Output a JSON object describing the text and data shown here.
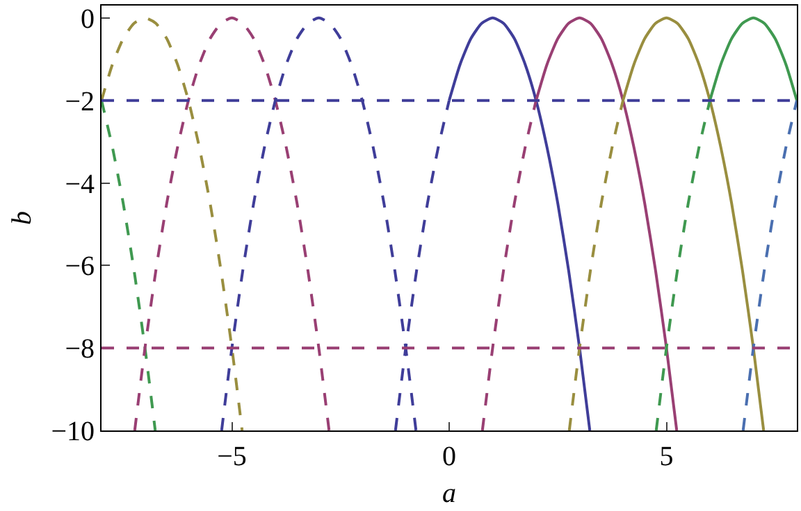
{
  "chart_data": {
    "type": "line",
    "xlabel": "a",
    "ylabel": "b",
    "xlim": [
      -8,
      8
    ],
    "ylim": [
      -10,
      0.3
    ],
    "xticks": [
      -5,
      0,
      5
    ],
    "yticks": [
      -10,
      -8,
      -6,
      -4,
      -2,
      0
    ],
    "marker": "none",
    "series": [
      {
        "color": "#3f9950",
        "line_style": "dashed",
        "x": [
          -8,
          -7.75,
          -7.5,
          -7.25,
          -7,
          -6.764
        ],
        "values": [
          -2,
          -3.13,
          -4.5,
          -6.13,
          -8,
          -10
        ]
      },
      {
        "color": "#998e3f",
        "line_style": "dashed",
        "x": [
          -8,
          -7.75,
          -7.5,
          -7.25,
          -7,
          -6.75,
          -6.5,
          -6.25,
          -6,
          -5.75,
          -5.5,
          -5.25,
          -5,
          -4.764
        ],
        "values": [
          -2,
          -1.13,
          -0.5,
          -0.13,
          0,
          -0.13,
          -0.5,
          -1.13,
          -2,
          -3.13,
          -4.5,
          -6.13,
          -8,
          -10
        ]
      },
      {
        "color": "#993f73",
        "line_style": "dashed",
        "x": [
          -7.236,
          -7,
          -6.75,
          -6.5,
          -6.25,
          -6,
          -5.75,
          -5.5,
          -5.25,
          -5,
          -4.75,
          -4.5,
          -4.25,
          -4,
          -3.75,
          -3.5,
          -3.25,
          -3,
          -2.764
        ],
        "values": [
          -10,
          -8,
          -6.13,
          -4.5,
          -3.13,
          -2,
          -1.13,
          -0.5,
          -0.13,
          0,
          -0.13,
          -0.5,
          -1.13,
          -2,
          -3.13,
          -4.5,
          -6.13,
          -8,
          -10
        ]
      },
      {
        "color": "#3f3d99",
        "line_style": "dashed",
        "x": [
          -5.236,
          -5,
          -4.75,
          -4.5,
          -4.25,
          -4,
          -3.75,
          -3.5,
          -3.25,
          -3,
          -2.75,
          -2.5,
          -2.25,
          -2,
          -1.75,
          -1.5,
          -1.25,
          -1,
          -0.764
        ],
        "values": [
          -10,
          -8,
          -6.13,
          -4.5,
          -3.13,
          -2,
          -1.13,
          -0.5,
          -0.13,
          0,
          -0.13,
          -0.5,
          -1.13,
          -2,
          -3.13,
          -4.5,
          -6.13,
          -8,
          -10
        ]
      },
      {
        "color": "#3f3d99",
        "line_style": "dashed",
        "x": [
          -1.236,
          -1,
          -0.75,
          -0.5,
          -0.25,
          0
        ],
        "values": [
          -10,
          -8,
          -6.13,
          -4.5,
          -3.13,
          -2
        ]
      },
      {
        "color": "#3f3d99",
        "line_style": "solid",
        "x": [
          0,
          0.25,
          0.5,
          0.75,
          1,
          1.25,
          1.5,
          1.75,
          2,
          2.25,
          2.5,
          2.75,
          3,
          3.236
        ],
        "values": [
          -2,
          -1.13,
          -0.5,
          -0.13,
          0,
          -0.13,
          -0.5,
          -1.13,
          -2,
          -3.13,
          -4.5,
          -6.13,
          -8,
          -10
        ]
      },
      {
        "color": "#993f73",
        "line_style": "dashed",
        "x": [
          0.764,
          1,
          1.25,
          1.5,
          1.75,
          2
        ],
        "values": [
          -10,
          -8,
          -6.13,
          -4.5,
          -3.13,
          -2
        ]
      },
      {
        "color": "#993f73",
        "line_style": "solid",
        "x": [
          2,
          2.25,
          2.5,
          2.75,
          3,
          3.25,
          3.5,
          3.75,
          4,
          4.25,
          4.5,
          4.75,
          5,
          5.236
        ],
        "values": [
          -2,
          -1.13,
          -0.5,
          -0.13,
          0,
          -0.13,
          -0.5,
          -1.13,
          -2,
          -3.13,
          -4.5,
          -6.13,
          -8,
          -10
        ]
      },
      {
        "color": "#998e3f",
        "line_style": "dashed",
        "x": [
          2.764,
          3,
          3.25,
          3.5,
          3.75,
          4
        ],
        "values": [
          -10,
          -8,
          -6.13,
          -4.5,
          -3.13,
          -2
        ]
      },
      {
        "color": "#998e3f",
        "line_style": "solid",
        "x": [
          4,
          4.25,
          4.5,
          4.75,
          5,
          5.25,
          5.5,
          5.75,
          6,
          6.25,
          6.5,
          6.75,
          7,
          7.236
        ],
        "values": [
          -2,
          -1.13,
          -0.5,
          -0.13,
          0,
          -0.13,
          -0.5,
          -1.13,
          -2,
          -3.13,
          -4.5,
          -6.13,
          -8,
          -10
        ]
      },
      {
        "color": "#3f9950",
        "line_style": "dashed",
        "x": [
          4.764,
          5,
          5.25,
          5.5,
          5.75,
          6
        ],
        "values": [
          -10,
          -8,
          -6.13,
          -4.5,
          -3.13,
          -2
        ]
      },
      {
        "color": "#3f9950",
        "line_style": "solid",
        "x": [
          6,
          6.25,
          6.5,
          6.75,
          7,
          7.25,
          7.5,
          7.75,
          8
        ],
        "values": [
          -2,
          -1.13,
          -0.5,
          -0.13,
          0,
          -0.13,
          -0.5,
          -1.13,
          -2
        ]
      },
      {
        "color": "#4a6fb0",
        "line_style": "dashed",
        "x": [
          6.764,
          7,
          7.25,
          7.5,
          7.75,
          8
        ],
        "values": [
          -10,
          -8,
          -6.13,
          -4.5,
          -3.13,
          -2
        ]
      }
    ],
    "ref_lines": [
      {
        "axis": "y",
        "value": -2,
        "color": "#3f3d99",
        "line_style": "dashed"
      },
      {
        "axis": "y",
        "value": -8,
        "color": "#993f73",
        "line_style": "dashed"
      }
    ]
  }
}
